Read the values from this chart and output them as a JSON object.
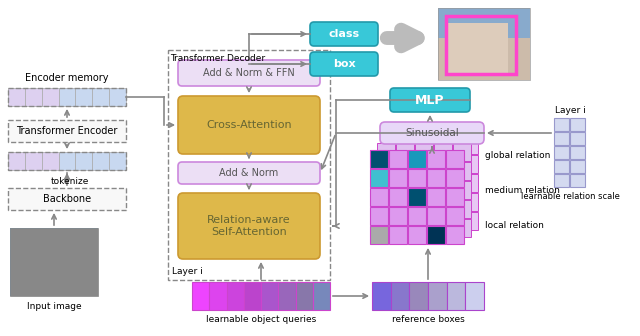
{
  "bg_color": "#ffffff",
  "encoder_memory_label": "Encoder memory",
  "transformer_encoder_label": "Transformer Encoder",
  "tokenize_label": "tokenize",
  "backbone_label": "Backbone",
  "input_image_label": "Input image",
  "transformer_decoder_label": "Transformer Decoder",
  "add_norm_ffn_label": "Add & Norm & FFN",
  "cross_attention_label": "Cross-Attention",
  "add_norm_label": "Add & Norm",
  "relation_aware_label": "Relation-aware\nSelf-Attention",
  "layer_i_label": "Layer i",
  "learnable_queries_label": "learnable object queries",
  "reference_boxes_label": "reference boxes",
  "mlp_label": "MLP",
  "sinusoidal_label": "Sinusoidal",
  "learnable_relation_scale_label": "learnable relation scale",
  "class_label": "class",
  "box_label": "box",
  "global_relation_label": "global relation",
  "medium_relation_label": "medium relation",
  "local_relation_label": "local relation"
}
